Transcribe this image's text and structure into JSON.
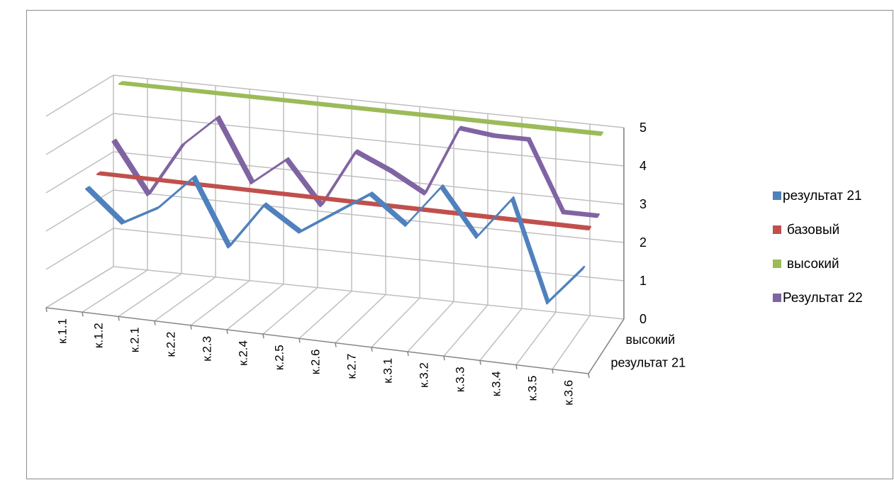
{
  "chart_data": {
    "type": "line",
    "three_d": true,
    "categories": [
      "к.1.1",
      "к.1.2",
      "к.2.1",
      "к.2.2",
      "к.2.3",
      "к.2.4",
      "к.2.5",
      "к.2.6",
      "к.2.7",
      "к.3.1",
      "к.3.2",
      "к.3.3",
      "к.3.4",
      "к.3.5",
      "к.3.6"
    ],
    "series": [
      {
        "name": "результат 21",
        "color": "#4f81bd",
        "values": [
          2.8,
          2.0,
          2.5,
          3.4,
          1.7,
          2.9,
          2.3,
          2.9,
          3.5,
          2.8,
          3.9,
          2.7,
          3.8,
          1.2,
          2.2
        ]
      },
      {
        "name": "базовый",
        "color": "#c0504d",
        "values": [
          3,
          3,
          3,
          3,
          3,
          3,
          3,
          3,
          3,
          3,
          3,
          3,
          3,
          3,
          3
        ]
      },
      {
        "name": "высокий",
        "color": "#9bbb59",
        "values": [
          5,
          5,
          5,
          5,
          5,
          5,
          5,
          5,
          5,
          5,
          5,
          5,
          5,
          5,
          5
        ]
      },
      {
        "name": "Результат 22",
        "color": "#8064a2",
        "values": [
          3.6,
          2.3,
          3.7,
          4.5,
          2.9,
          3.6,
          2.5,
          4.0,
          3.6,
          3.1,
          4.9,
          4.8,
          4.8,
          3.0,
          3.0
        ]
      }
    ],
    "y_ticks": [
      "0",
      "1",
      "2",
      "3",
      "4",
      "5"
    ],
    "ylim": [
      0,
      5
    ],
    "depth_labels": [
      "высокий",
      "результат 21"
    ],
    "grid": true,
    "legend_position": "right"
  }
}
